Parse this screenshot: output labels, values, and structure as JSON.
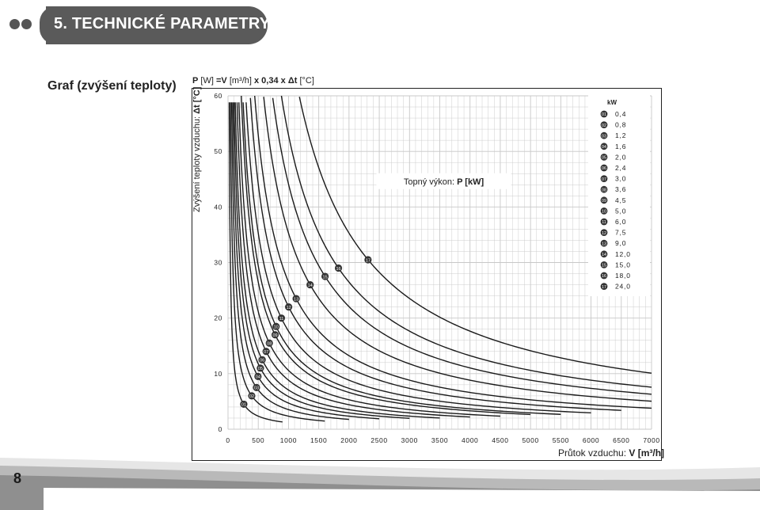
{
  "header": {
    "title": "5. TECHNICKÉ PARAMETRY"
  },
  "section_title": "Graf (zvýšení teploty)",
  "formula": {
    "p": "P",
    "p_unit": "[W]",
    "eq": "=",
    "v": "V",
    "v_unit": "[m³/h]",
    "factor": "x 0,34 x",
    "dt": "Δt",
    "dt_unit": "[°C]"
  },
  "y_axis_label": {
    "text": "Zvýšení teploty vzduchu:",
    "symbol": "Δt [°C]"
  },
  "x_axis_label": {
    "text": "Průtok vzduchu:",
    "symbol": "V [m³/h]"
  },
  "page_number": "8",
  "colors": {
    "header_bg": "#5a5a5a",
    "grid": "#c8c8c8",
    "curve": "#1a1a1a",
    "marker_bg": "#333333"
  },
  "chart_data": {
    "type": "line",
    "title": "Topný výkon: P [kW]",
    "xlabel": "Průtok vzduchu: V [m³/h]",
    "ylabel": "Zvýšení teploty vzduchu: Δt [°C]",
    "xlim": [
      0,
      7000
    ],
    "ylim": [
      0,
      60
    ],
    "x_ticks": [
      "0",
      "500",
      "1000",
      "1500",
      "2000",
      "2500",
      "3000",
      "3500",
      "4000",
      "4500",
      "5000",
      "5500",
      "6000",
      "6500",
      "7000"
    ],
    "y_ticks": [
      "0",
      "10",
      "20",
      "30",
      "40",
      "50",
      "60"
    ],
    "grid": true,
    "formula": "Δt = P·1000 / (V · 0,34)",
    "legend": {
      "header": "kW",
      "placement": "top-right",
      "entries": [
        {
          "id": "01",
          "kw": "0,4"
        },
        {
          "id": "02",
          "kw": "0,8"
        },
        {
          "id": "03",
          "kw": "1,2"
        },
        {
          "id": "04",
          "kw": "1,6"
        },
        {
          "id": "05",
          "kw": "2,0"
        },
        {
          "id": "06",
          "kw": "2,4"
        },
        {
          "id": "07",
          "kw": "3,0"
        },
        {
          "id": "08",
          "kw": "3,6"
        },
        {
          "id": "09",
          "kw": "4,5"
        },
        {
          "id": "10",
          "kw": "5,0"
        },
        {
          "id": "11",
          "kw": "6,0"
        },
        {
          "id": "12",
          "kw": "7,5"
        },
        {
          "id": "13",
          "kw": "9,0"
        },
        {
          "id": "14",
          "kw": "12,0"
        },
        {
          "id": "15",
          "kw": "15,0"
        },
        {
          "id": "16",
          "kw": "18,0"
        },
        {
          "id": "17",
          "kw": "24,0"
        }
      ]
    },
    "series": [
      {
        "id": "01",
        "power_kw": 0.4,
        "x_range": [
          20,
          900
        ],
        "marker_dt": 4.5
      },
      {
        "id": "02",
        "power_kw": 0.8,
        "x_range": [
          40,
          1600
        ],
        "marker_dt": 6
      },
      {
        "id": "03",
        "power_kw": 1.2,
        "x_range": [
          60,
          2000
        ],
        "marker_dt": 7.5
      },
      {
        "id": "04",
        "power_kw": 1.6,
        "x_range": [
          80,
          2500
        ],
        "marker_dt": 9.5
      },
      {
        "id": "05",
        "power_kw": 2.0,
        "x_range": [
          100,
          3000
        ],
        "marker_dt": 11
      },
      {
        "id": "06",
        "power_kw": 2.4,
        "x_range": [
          120,
          3500
        ],
        "marker_dt": 12.5
      },
      {
        "id": "07",
        "power_kw": 3.0,
        "x_range": [
          150,
          4000
        ],
        "marker_dt": 14
      },
      {
        "id": "08",
        "power_kw": 3.6,
        "x_range": [
          180,
          4500
        ],
        "marker_dt": 15.5
      },
      {
        "id": "09",
        "power_kw": 4.5,
        "x_range": [
          220,
          5000
        ],
        "marker_dt": 17
      },
      {
        "id": "10",
        "power_kw": 5.0,
        "x_range": [
          250,
          5500
        ],
        "marker_dt": 18.5
      },
      {
        "id": "11",
        "power_kw": 6.0,
        "x_range": [
          300,
          6000
        ],
        "marker_dt": 20
      },
      {
        "id": "12",
        "power_kw": 7.5,
        "x_range": [
          370,
          6500
        ],
        "marker_dt": 22
      },
      {
        "id": "13",
        "power_kw": 9.0,
        "x_range": [
          440,
          7000
        ],
        "marker_dt": 23.5
      },
      {
        "id": "14",
        "power_kw": 12.0,
        "x_range": [
          590,
          7000
        ],
        "marker_dt": 26
      },
      {
        "id": "15",
        "power_kw": 15.0,
        "x_range": [
          740,
          7000
        ],
        "marker_dt": 27.5
      },
      {
        "id": "16",
        "power_kw": 18.0,
        "x_range": [
          880,
          7000
        ],
        "marker_dt": 29
      },
      {
        "id": "17",
        "power_kw": 24.0,
        "x_range": [
          1180,
          7000
        ],
        "marker_dt": 30.5
      }
    ]
  }
}
